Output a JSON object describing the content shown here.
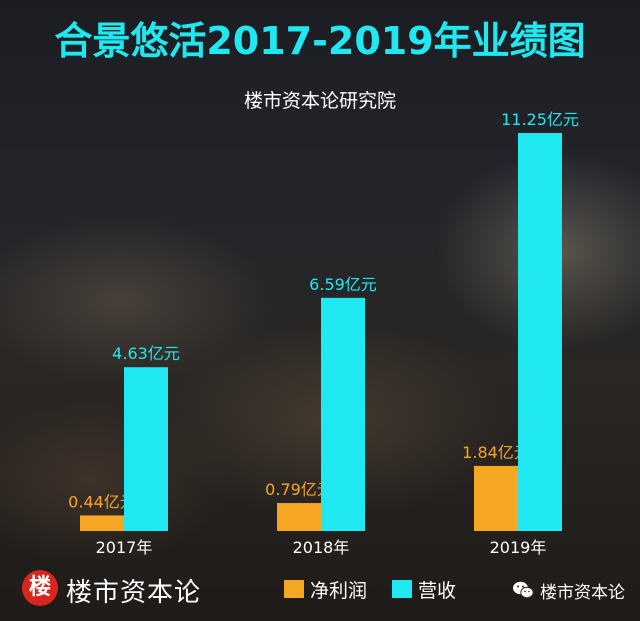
{
  "chart_data": {
    "type": "bar",
    "title": "合景悠活2017-2019年业绩图",
    "subtitle": "楼市资本论研究院",
    "categories": [
      "2017年",
      "2018年",
      "2019年"
    ],
    "series": [
      {
        "name": "净利润",
        "values": [
          0.44,
          0.79,
          1.84
        ],
        "labels": [
          "0.44亿元",
          "0.79亿元",
          "1.84亿元"
        ],
        "color": "#f5a623"
      },
      {
        "name": "营收",
        "values": [
          4.63,
          6.59,
          11.25
        ],
        "labels": [
          "4.63亿元",
          "6.59亿元",
          "11.25亿元"
        ],
        "color": "#1fe8f0"
      }
    ],
    "ylim": [
      0,
      11.25
    ],
    "grid": false,
    "legend": "bottom-center"
  },
  "footer": {
    "brand_badge": "楼",
    "brand_name": "楼市资本论",
    "wechat_name": "楼市资本论"
  },
  "icons": {
    "wechat": "wechat-icon"
  },
  "colors": {
    "title": "#1fe8f0",
    "brand_red": "#d8251d"
  }
}
